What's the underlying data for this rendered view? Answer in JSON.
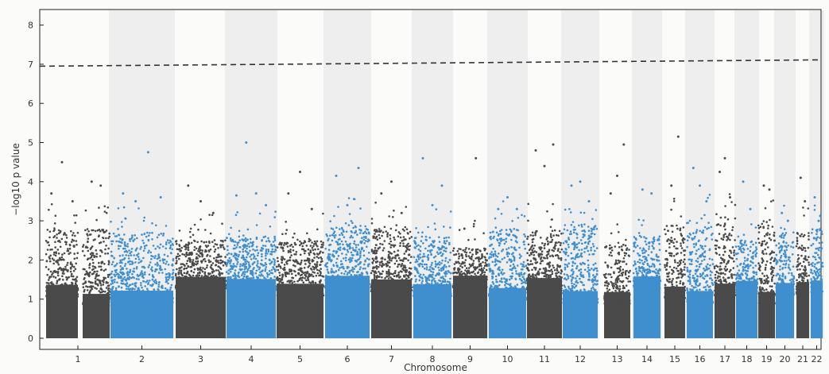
{
  "chart_data": {
    "type": "scatter",
    "title": "",
    "xlabel": "Chromosome",
    "ylabel": "−log10 p value",
    "ylim": [
      0,
      8.3
    ],
    "yticks": [
      "0",
      "1",
      "2",
      "3",
      "4",
      "5",
      "6",
      "7",
      "8"
    ],
    "threshold": 6.95,
    "grid": false,
    "legend": "none",
    "colors": {
      "odd": "#4a4a4a",
      "even": "#3f8fcf",
      "threshold": "#333333",
      "band": "#eeeeee"
    },
    "chromosomes": [
      {
        "label": "1",
        "typical_max": 2.5,
        "peaks": [
          3.7,
          4.0,
          4.5,
          3.9,
          3.5
        ]
      },
      {
        "label": "2",
        "typical_max": 2.4,
        "peaks": [
          3.7,
          3.5,
          4.75,
          3.6
        ]
      },
      {
        "label": "3",
        "typical_max": 2.2,
        "peaks": [
          3.9,
          3.5,
          3.2
        ]
      },
      {
        "label": "4",
        "typical_max": 2.3,
        "peaks": [
          3.65,
          5.0,
          3.7,
          3.4
        ]
      },
      {
        "label": "5",
        "typical_max": 2.2,
        "peaks": [
          3.7,
          4.25,
          3.3
        ]
      },
      {
        "label": "6",
        "typical_max": 2.6,
        "peaks": [
          4.15,
          3.4,
          4.35
        ]
      },
      {
        "label": "7",
        "typical_max": 2.5,
        "peaks": [
          3.7,
          4.0,
          3.2
        ]
      },
      {
        "label": "8",
        "typical_max": 2.3,
        "peaks": [
          4.6,
          3.4,
          3.9
        ]
      },
      {
        "label": "9",
        "typical_max": 2.0,
        "peaks": [
          2.8,
          4.6
        ]
      },
      {
        "label": "10",
        "typical_max": 2.5,
        "peaks": [
          3.3,
          3.6,
          3.3
        ]
      },
      {
        "label": "11",
        "typical_max": 2.5,
        "peaks": [
          4.8,
          4.4,
          4.95
        ]
      },
      {
        "label": "12",
        "typical_max": 2.6,
        "peaks": [
          3.9,
          4.0,
          3.5
        ]
      },
      {
        "label": "13",
        "typical_max": 2.1,
        "peaks": [
          3.7,
          4.15,
          4.95
        ]
      },
      {
        "label": "14",
        "typical_max": 2.3,
        "peaks": [
          3.8,
          3.7
        ]
      },
      {
        "label": "15",
        "typical_max": 2.6,
        "peaks": [
          3.9,
          5.15
        ]
      },
      {
        "label": "16",
        "typical_max": 2.7,
        "peaks": [
          4.35,
          3.9,
          3.5
        ]
      },
      {
        "label": "17",
        "typical_max": 2.8,
        "peaks": [
          4.25,
          4.6,
          3.6
        ]
      },
      {
        "label": "18",
        "typical_max": 2.2,
        "peaks": [
          4.0,
          3.3
        ]
      },
      {
        "label": "19",
        "typical_max": 2.7,
        "peaks": [
          3.9,
          3.8
        ]
      },
      {
        "label": "20",
        "typical_max": 2.4,
        "peaks": [
          3.2,
          3.0
        ]
      },
      {
        "label": "21",
        "typical_max": 2.4,
        "peaks": [
          4.1,
          3.5
        ]
      },
      {
        "label": "22",
        "typical_max": 2.5,
        "peaks": [
          3.6,
          3.0
        ]
      }
    ]
  }
}
